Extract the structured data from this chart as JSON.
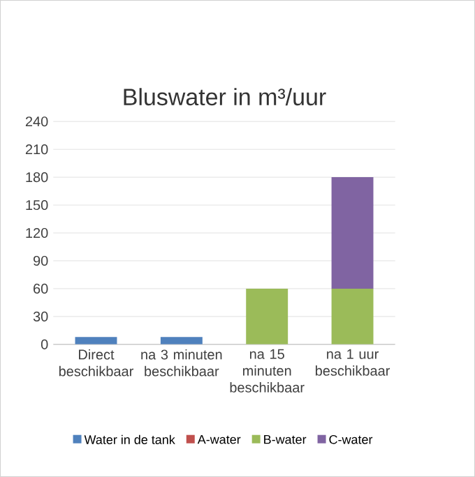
{
  "chart_data": {
    "type": "bar",
    "title": "Bluswater in m³/uur",
    "stacked": true,
    "categories": [
      "Direct beschikbaar",
      "na 3 minuten beschikbaar",
      "na 15 minuten beschikbaar",
      "na 1 uur beschikbaar"
    ],
    "series": [
      {
        "name": "Water in de tank",
        "color": "#4f81bd",
        "values": [
          8,
          8,
          0,
          0
        ]
      },
      {
        "name": "A-water",
        "color": "#c0504d",
        "values": [
          0,
          0,
          0,
          0
        ]
      },
      {
        "name": "B-water",
        "color": "#9bbb59",
        "values": [
          0,
          0,
          60,
          60
        ]
      },
      {
        "name": "C-water",
        "color": "#8064a2",
        "values": [
          0,
          0,
          0,
          120
        ]
      }
    ],
    "ylim": [
      0,
      240
    ],
    "yticks": [
      0,
      30,
      60,
      90,
      120,
      150,
      180,
      210,
      240
    ],
    "grid": "y",
    "legend": "bottom"
  }
}
